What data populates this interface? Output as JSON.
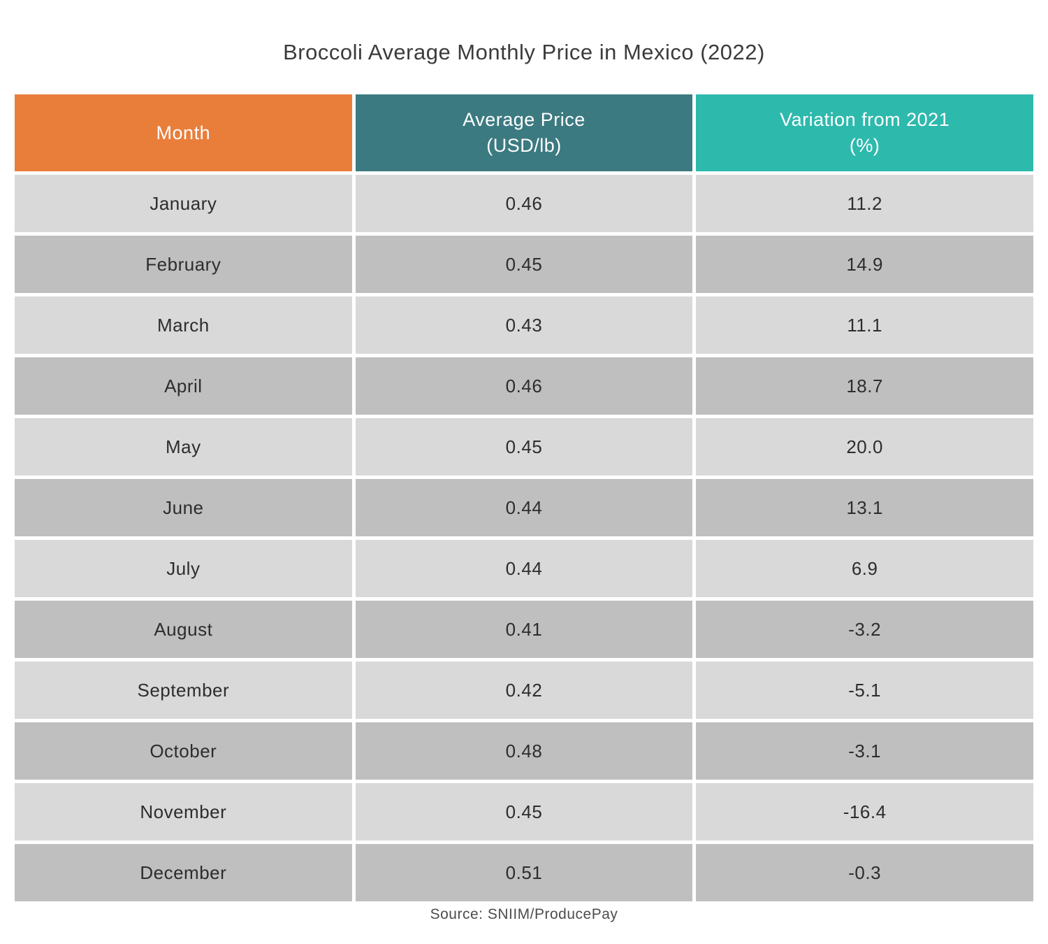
{
  "title": "Broccoli Average Monthly Price in Mexico (2022)",
  "source": "Source: SNIIM/ProducePay",
  "colors": {
    "header_month": "#e97e3a",
    "header_price": "#3c7a81",
    "header_variation": "#2eb9ad",
    "row_light": "#d9d9d9",
    "row_dark": "#bfbfbf",
    "gutter": "#ffffff",
    "header_text": "#ffffff",
    "cell_text": "#2d2d2d"
  },
  "table": {
    "columns": [
      {
        "line1": "Month",
        "line2": ""
      },
      {
        "line1": "Average Price",
        "line2": "(USD/lb)"
      },
      {
        "line1": "Variation from 2021",
        "line2": "(%)"
      }
    ],
    "rows": [
      {
        "month": "January",
        "price": "0.46",
        "variation": "11.2"
      },
      {
        "month": "February",
        "price": "0.45",
        "variation": "14.9"
      },
      {
        "month": "March",
        "price": "0.43",
        "variation": "11.1"
      },
      {
        "month": "April",
        "price": "0.46",
        "variation": "18.7"
      },
      {
        "month": "May",
        "price": "0.45",
        "variation": "20.0"
      },
      {
        "month": "June",
        "price": "0.44",
        "variation": "13.1"
      },
      {
        "month": "July",
        "price": "0.44",
        "variation": "6.9"
      },
      {
        "month": "August",
        "price": "0.41",
        "variation": "-3.2"
      },
      {
        "month": "September",
        "price": "0.42",
        "variation": "-5.1"
      },
      {
        "month": "October",
        "price": "0.48",
        "variation": "-3.1"
      },
      {
        "month": "November",
        "price": "0.45",
        "variation": "-16.4"
      },
      {
        "month": "December",
        "price": "0.51",
        "variation": "-0.3"
      }
    ]
  },
  "chart_data": {
    "type": "table",
    "title": "Broccoli Average Monthly Price in Mexico (2022)",
    "columns": [
      "Month",
      "Average Price (USD/lb)",
      "Variation from 2021 (%)"
    ],
    "categories": [
      "January",
      "February",
      "March",
      "April",
      "May",
      "June",
      "July",
      "August",
      "September",
      "October",
      "November",
      "December"
    ],
    "series": [
      {
        "name": "Average Price (USD/lb)",
        "values": [
          0.46,
          0.45,
          0.43,
          0.46,
          0.45,
          0.44,
          0.44,
          0.41,
          0.42,
          0.48,
          0.45,
          0.51
        ]
      },
      {
        "name": "Variation from 2021 (%)",
        "values": [
          11.2,
          14.9,
          11.1,
          18.7,
          20.0,
          13.1,
          6.9,
          -3.2,
          -5.1,
          -3.1,
          -16.4,
          -0.3
        ]
      }
    ],
    "source": "Source: SNIIM/ProducePay"
  }
}
